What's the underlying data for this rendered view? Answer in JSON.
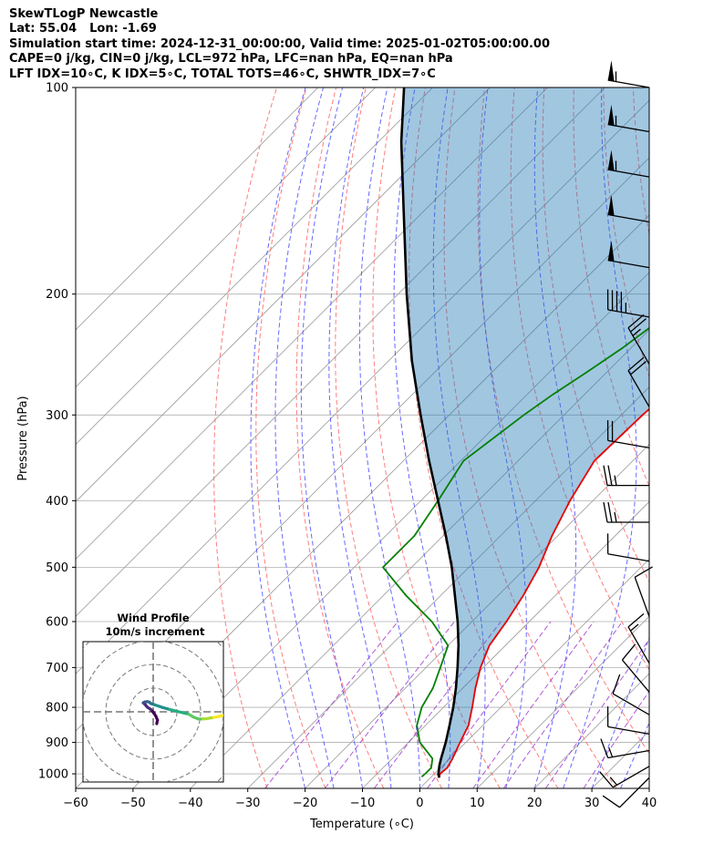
{
  "header": {
    "title": "SkewTLogP Newcastle",
    "lat": "Lat: 55.04",
    "lon": "Lon: -1.69",
    "times": "Simulation start time: 2024-12-31_00:00:00, Valid time: 2025-01-02T05:00:00.00",
    "params1": "CAPE=0 j/kg, CIN=0 j/kg, LCL=972 hPa, LFC=nan hPa, EQ=nan hPa",
    "params2": "LFT IDX=10∘C, K IDX=5∘C, TOTAL TOTS=46∘C, SHWTR_IDX=7∘C"
  },
  "chart_data": {
    "type": "skewt-logp",
    "xlabel": "Temperature (∘C)",
    "ylabel": "Pressure (hPa)",
    "xlim": [
      -60,
      40
    ],
    "ylim": [
      1050,
      100
    ],
    "xticks": [
      -60,
      -50,
      -40,
      -30,
      -20,
      -10,
      0,
      10,
      20,
      30,
      40
    ],
    "xtick_labels": [
      "−60",
      "−50",
      "−40",
      "−30",
      "−20",
      "−10",
      "0",
      "10",
      "20",
      "30",
      "40"
    ],
    "yticks": [
      1000,
      900,
      800,
      700,
      600,
      500,
      400,
      300,
      200,
      100
    ],
    "ytick_labels": [
      "1000",
      "900",
      "800",
      "700",
      "600",
      "500",
      "400",
      "300",
      "200",
      "100"
    ],
    "skew_degrees": 45,
    "colors": {
      "temperature": "#e60000",
      "dewpoint": "#008000",
      "parcel": "#000000",
      "shade": "#1f77b4",
      "dry_adiabat": "#ff6666",
      "moist_adiabat": "#4d4dff",
      "mixing_ratio": "#9933cc",
      "isotherm": "#999999",
      "grid": "#b0b0b0"
    },
    "temperature": {
      "pressure": [
        1013,
        1000,
        980,
        950,
        900,
        850,
        800,
        750,
        700,
        650,
        600,
        550,
        500,
        450,
        400,
        350,
        300,
        280,
        260,
        240,
        220,
        200,
        180,
        160,
        140,
        120,
        110,
        100
      ],
      "values": [
        1.5,
        1.0,
        1.2,
        0.5,
        -1.0,
        -2.5,
        -5.0,
        -7.8,
        -10.5,
        -12.8,
        -14.0,
        -15.6,
        -17.8,
        -21.0,
        -24.0,
        -26.7,
        -26.3,
        -25.8,
        -24.9,
        -23.7,
        -23.2,
        -21.5,
        -20.5,
        -20.0,
        -19.6,
        -19.3,
        -18.9,
        -18.6
      ]
    },
    "dewpoint": {
      "pressure": [
        1010,
        1000,
        980,
        950,
        900,
        850,
        800,
        750,
        700,
        650,
        600,
        550,
        500,
        450,
        400,
        350,
        300,
        280,
        260,
        240,
        220,
        200,
        180,
        160,
        140,
        120,
        110,
        100
      ],
      "values": [
        -1.7,
        -1.6,
        -1.6,
        -3.0,
        -8.0,
        -11.5,
        -13.8,
        -15.2,
        -17.5,
        -20.0,
        -27.0,
        -36.0,
        -45.0,
        -45.0,
        -47.0,
        -49.5,
        -47.0,
        -45.5,
        -43.5,
        -41.5,
        -40.0,
        -40.5,
        -41.0,
        -40.0,
        -36.5,
        -33.0,
        -31.5,
        -30.2
      ]
    },
    "parcel": {
      "pressure": [
        1013,
        1000,
        972,
        950,
        900,
        850,
        800,
        750,
        700,
        650,
        600,
        550,
        500,
        450,
        400,
        350,
        300,
        250,
        200,
        150,
        120,
        100
      ],
      "values": [
        1.5,
        0.7,
        -0.6,
        -1.5,
        -3.5,
        -5.8,
        -8.3,
        -11.2,
        -14.5,
        -18.2,
        -22.5,
        -27.5,
        -33.0,
        -39.5,
        -47.0,
        -55.5,
        -65.0,
        -76.0,
        -88.5,
        -104.0,
        -116.0,
        -125.0
      ]
    },
    "wind_barbs": [
      {
        "pressure": 1013,
        "direction": 225,
        "speed_kt": 10
      },
      {
        "pressure": 975,
        "direction": 240,
        "speed_kt": 15
      },
      {
        "pressure": 925,
        "direction": 260,
        "speed_kt": 15
      },
      {
        "pressure": 875,
        "direction": 280,
        "speed_kt": 10
      },
      {
        "pressure": 820,
        "direction": 300,
        "speed_kt": 10
      },
      {
        "pressure": 760,
        "direction": 320,
        "speed_kt": 10
      },
      {
        "pressure": 690,
        "direction": 330,
        "speed_kt": 15
      },
      {
        "pressure": 590,
        "direction": 340,
        "speed_kt": 10
      },
      {
        "pressure": 490,
        "direction": 280,
        "speed_kt": 10
      },
      {
        "pressure": 430,
        "direction": 270,
        "speed_kt": 25
      },
      {
        "pressure": 380,
        "direction": 270,
        "speed_kt": 25
      },
      {
        "pressure": 335,
        "direction": 280,
        "speed_kt": 20
      },
      {
        "pressure": 292,
        "direction": 330,
        "speed_kt": 20
      },
      {
        "pressure": 253,
        "direction": 330,
        "speed_kt": 25
      },
      {
        "pressure": 216,
        "direction": 280,
        "speed_kt": 45
      },
      {
        "pressure": 183,
        "direction": 280,
        "speed_kt": 50
      },
      {
        "pressure": 157,
        "direction": 280,
        "speed_kt": 50
      },
      {
        "pressure": 135,
        "direction": 280,
        "speed_kt": 55
      },
      {
        "pressure": 116,
        "direction": 280,
        "speed_kt": 55
      },
      {
        "pressure": 100,
        "direction": 280,
        "speed_kt": 55
      }
    ],
    "hodograph": {
      "title": "Wind Profile",
      "subtitle": "10m/s increment",
      "ring_spacing_ms": 10,
      "rings": 3,
      "u": [
        1.5,
        1.8,
        1.2,
        0.3,
        -1.0,
        -2.5,
        -3.5,
        -4.2,
        -3.6,
        -2.5,
        -2.0,
        -1.5,
        -1.0,
        0.5,
        2.0,
        4.0,
        7.0,
        10.0,
        13.0,
        15.0,
        17.0,
        19.0,
        21.0,
        22.5,
        24.0,
        25.5,
        28.0,
        29.5,
        30.5
      ],
      "v": [
        5.0,
        3.5,
        2.0,
        0.5,
        -1.0,
        -2.0,
        -3.2,
        -3.8,
        -4.1,
        -4.3,
        -4.2,
        -4.0,
        -3.5,
        -3.0,
        -2.5,
        -1.8,
        -1.0,
        -0.2,
        0.5,
        1.0,
        2.2,
        3.0,
        3.0,
        2.9,
        2.6,
        2.4,
        1.9,
        1.5,
        1.2
      ]
    }
  }
}
